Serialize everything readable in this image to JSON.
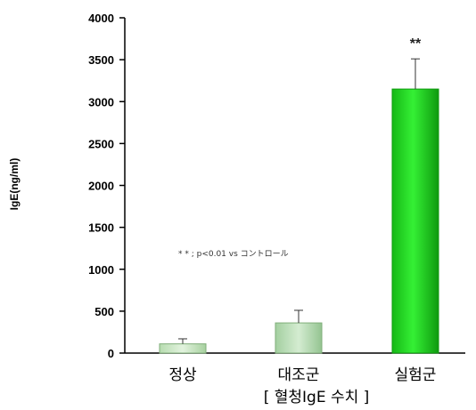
{
  "chart_data": {
    "type": "bar",
    "title": "[ 혈청IgE 수치 ]",
    "xlabel": "",
    "ylabel": "IgE(ng/ml)",
    "categories": [
      "정상",
      "대조군",
      "실험군"
    ],
    "values": [
      110,
      360,
      3150
    ],
    "error": [
      60,
      150,
      360
    ],
    "ylim": [
      0,
      4000
    ],
    "yticks": [
      "0",
      "500",
      "1000",
      "1500",
      "2000",
      "2500",
      "3000",
      "3500",
      "4000"
    ],
    "ytick_values": [
      0,
      500,
      1000,
      1500,
      2000,
      2500,
      3000,
      3500,
      4000
    ],
    "significance": [
      "",
      "",
      "**"
    ],
    "annotation": "* * ; p<0.01 vs コントロール",
    "grid": false,
    "legend": "none",
    "colors": {
      "bar_light": "#c6e6c0",
      "bar_mid": "#b9dcb6",
      "bar_strong": "#1ed41e",
      "bar_strong_dark": "#0f9a0f",
      "axis": "#000000"
    }
  }
}
